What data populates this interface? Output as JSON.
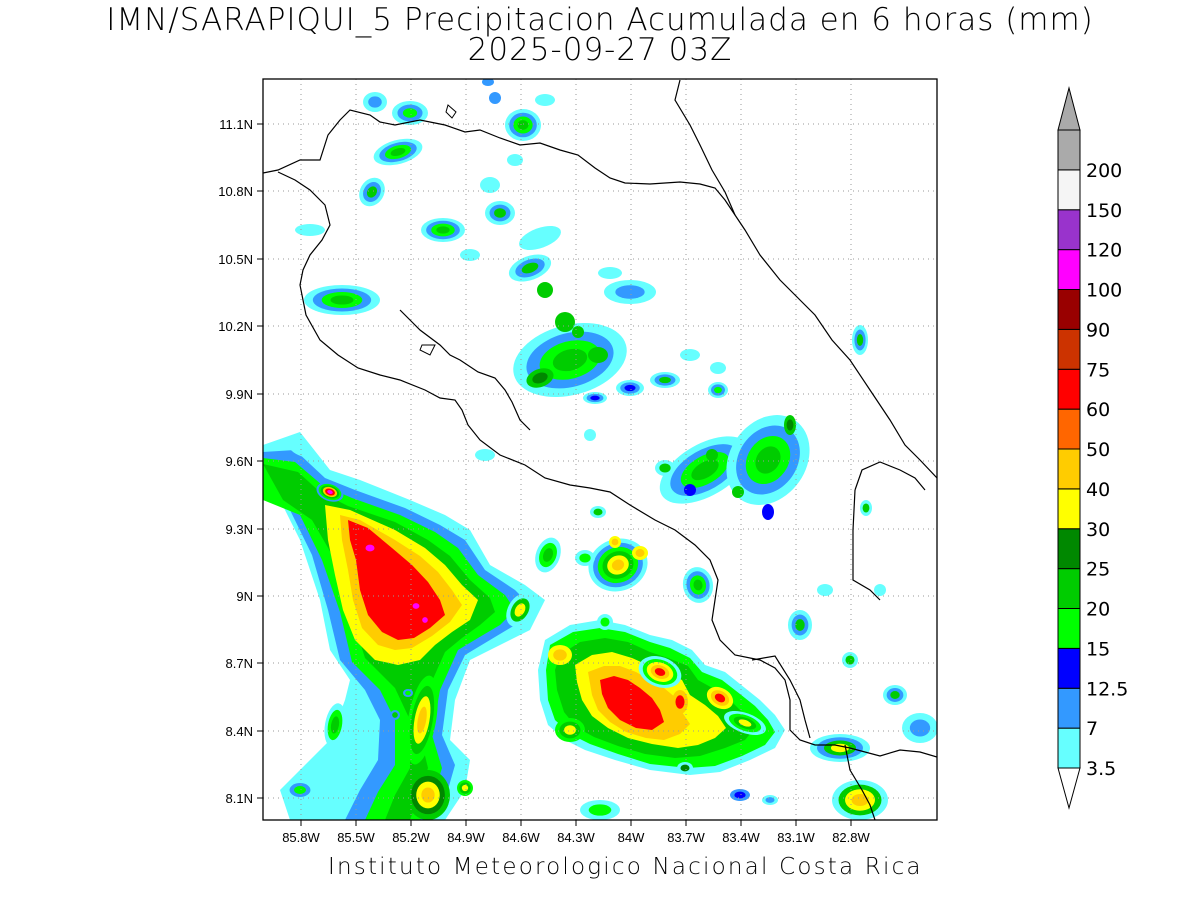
{
  "title": {
    "line1": "IMN/SARAPIQUI_5 Precipitacion Acumulada en 6 horas (mm)",
    "line2": "2025-09-27 03Z"
  },
  "footer": "Instituto Meteorologico Nacional Costa Rica",
  "axes": {
    "lon_ticks": [
      "85.8W",
      "85.5W",
      "85.2W",
      "84.9W",
      "84.6W",
      "84.3W",
      "84W",
      "83.7W",
      "83.4W",
      "83.1W",
      "82.8W"
    ],
    "lat_ticks": [
      "11.1N",
      "10.8N",
      "10.5N",
      "10.2N",
      "9.9N",
      "9.6N",
      "9.3N",
      "9N",
      "8.7N",
      "8.4N",
      "8.1N"
    ]
  },
  "colorbar": {
    "labels": [
      "3.5",
      "7",
      "12.5",
      "15",
      "20",
      "25",
      "30",
      "40",
      "50",
      "60",
      "75",
      "90",
      "100",
      "120",
      "150",
      "200"
    ],
    "colors": [
      "#66ffff",
      "#3399ff",
      "#0000ff",
      "#00ff00",
      "#00cc00",
      "#008800",
      "#ffff00",
      "#ffcc00",
      "#ff6600",
      "#ff0000",
      "#cc3300",
      "#990000",
      "#ff00ff",
      "#9933cc",
      "#f5f5f5",
      "#aaaaaa"
    ]
  },
  "precip_colors": {
    "c35": "#66ffff",
    "c7": "#3399ff",
    "c12": "#0000ff",
    "c15": "#00ff00",
    "c20": "#00cc00",
    "c25": "#008800",
    "c30": "#ffff00",
    "c40": "#ffcc00",
    "c50": "#ff6600",
    "c60": "#ff0000",
    "c100": "#ff00ff"
  }
}
